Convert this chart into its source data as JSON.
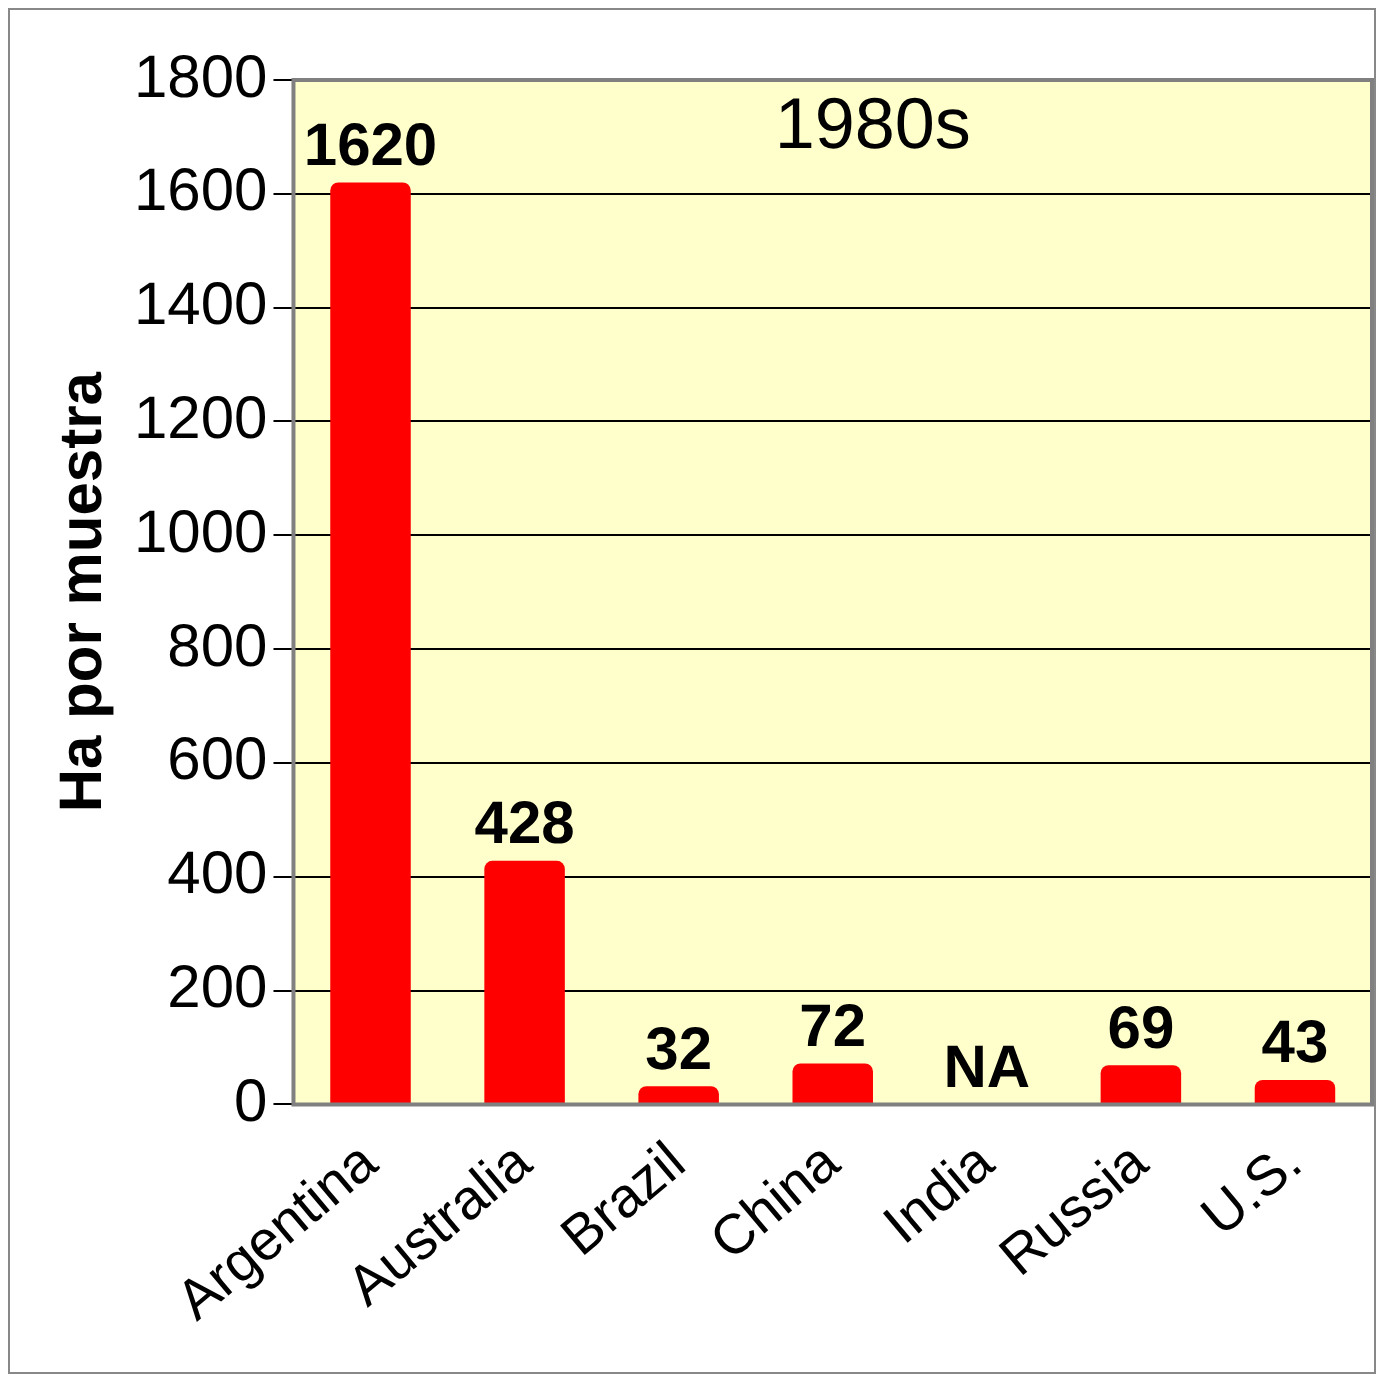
{
  "chart_data": {
    "type": "bar",
    "title": "1980s",
    "ylabel": "Ha por muestra",
    "categories": [
      "Argentina",
      "Australia",
      "Brazil",
      "China",
      "India",
      "Russia",
      "U.S."
    ],
    "values": [
      1620,
      428,
      32,
      72,
      null,
      69,
      43
    ],
    "value_labels": [
      "1620",
      "428",
      "32",
      "72",
      "NA",
      "69",
      "43"
    ],
    "color": "#ff0000",
    "ylim": [
      0,
      1800
    ],
    "yticks": [
      0,
      200,
      400,
      600,
      800,
      1000,
      1200,
      1400,
      1600,
      1800
    ],
    "grid": "y",
    "legend": false
  }
}
